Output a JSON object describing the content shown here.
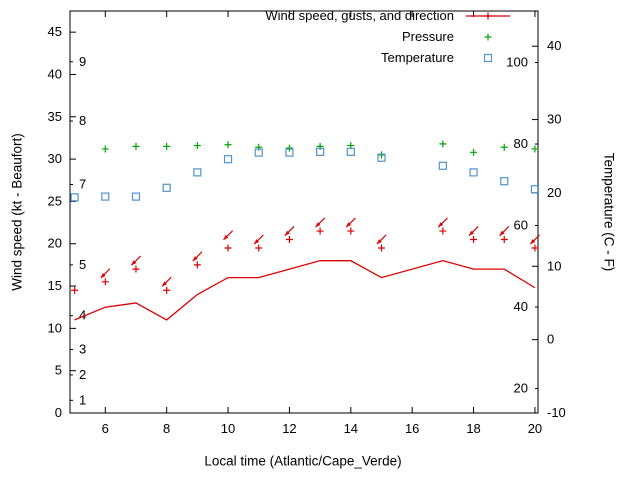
{
  "chart_data": {
    "type": "line",
    "title": "",
    "xlabel": "Local time (Atlantic/Cape_Verde)",
    "ylabel_left": "Wind speed (kt - Beaufort)",
    "ylabel_right": "Temperature (C - F)",
    "x_range": [
      5,
      20
    ],
    "x_ticks": [
      6,
      8,
      10,
      12,
      14,
      16,
      18,
      20
    ],
    "y_left_range": [
      0,
      47.5
    ],
    "y_left_ticks": [
      0,
      5,
      10,
      15,
      20,
      25,
      30,
      35,
      40,
      45
    ],
    "beaufort_ticks": [
      {
        "label": "1",
        "kt": 1.5
      },
      {
        "label": "2",
        "kt": 4.5
      },
      {
        "label": "3",
        "kt": 7.5
      },
      {
        "label": "4",
        "kt": 11.5
      },
      {
        "label": "5",
        "kt": 17.5
      },
      {
        "label": "7",
        "kt": 27
      },
      {
        "label": "8",
        "kt": 34.5
      },
      {
        "label": "9",
        "kt": 41.5
      }
    ],
    "y_right_range_c": [
      -10,
      44.8
    ],
    "y_right_ticks_c": [
      -10,
      0,
      10,
      20,
      30,
      40
    ],
    "y_right_inner_ticks_f": [
      20,
      40,
      60,
      80,
      100
    ],
    "grid": false,
    "legend": {
      "position": "top-right-inside",
      "entries": [
        {
          "label": "Wind speed, gusts, and direction",
          "marker": "line-plus",
          "color": "#dc0000"
        },
        {
          "label": "Pressure",
          "marker": "plus",
          "color": "#00a400"
        },
        {
          "label": "Temperature",
          "marker": "open-square",
          "color": "#4f94cd"
        }
      ]
    },
    "series": {
      "wind_speed_kt": {
        "name": "Wind speed",
        "style": "line",
        "color": "#dc0000",
        "hours": [
          5,
          6,
          7,
          8,
          9,
          10,
          11,
          12,
          13,
          14,
          15,
          17,
          18,
          19,
          20
        ],
        "values": [
          11,
          12.5,
          13,
          11,
          14,
          16,
          16,
          17,
          18,
          18,
          16,
          18,
          17,
          17,
          14.8
        ]
      },
      "gusts_kt": {
        "name": "Gusts",
        "style": "plus",
        "color": "#dc0000",
        "hours": [
          5,
          6,
          7,
          8,
          9,
          10,
          11,
          12,
          13,
          14,
          15,
          17,
          18,
          19,
          20
        ],
        "values": [
          14.5,
          15.5,
          17,
          14.5,
          17.5,
          19.5,
          19.5,
          20.5,
          21.5,
          21.5,
          19.5,
          21.5,
          20.5,
          20.5,
          19.5
        ]
      },
      "wind_direction_arrows": {
        "name": "Wind direction",
        "style": "arrow",
        "color": "#dc0000",
        "angle_deg": 225,
        "hours": [
          6,
          7,
          8,
          9,
          10,
          11,
          12,
          13,
          14,
          15,
          17,
          18,
          19,
          20
        ],
        "kt": [
          16.5,
          18,
          15.5,
          18.5,
          21,
          20.5,
          21.5,
          22.5,
          22.5,
          20.5,
          22.5,
          21.5,
          21.5,
          20.5
        ]
      },
      "pressure": {
        "name": "Pressure",
        "style": "plus",
        "color": "#00a400",
        "note": "plotted in left-axis units",
        "hours": [
          6,
          7,
          8,
          9,
          10,
          11,
          12,
          13,
          14,
          15,
          17,
          18,
          19,
          20
        ],
        "values_left_axis": [
          31.2,
          31.5,
          31.5,
          31.6,
          31.7,
          31.4,
          31.3,
          31.5,
          31.6,
          30.5,
          31.8,
          30.8,
          31.4,
          31.2
        ]
      },
      "temperature_c": {
        "name": "Temperature",
        "style": "open-square",
        "color": "#4f94cd",
        "hours": [
          5,
          6,
          7,
          8,
          9,
          10,
          11,
          12,
          13,
          14,
          15,
          17,
          18,
          19,
          20
        ],
        "values": [
          19.4,
          19.5,
          19.5,
          20.7,
          22.8,
          24.6,
          25.5,
          25.5,
          25.6,
          25.6,
          24.8,
          23.7,
          22.8,
          21.6,
          20.5
        ]
      }
    },
    "colors": {
      "axis": "#000000",
      "background": "#ffffff",
      "wind": "#dc0000",
      "pressure": "#00a400",
      "temperature": "#4f94cd"
    }
  }
}
